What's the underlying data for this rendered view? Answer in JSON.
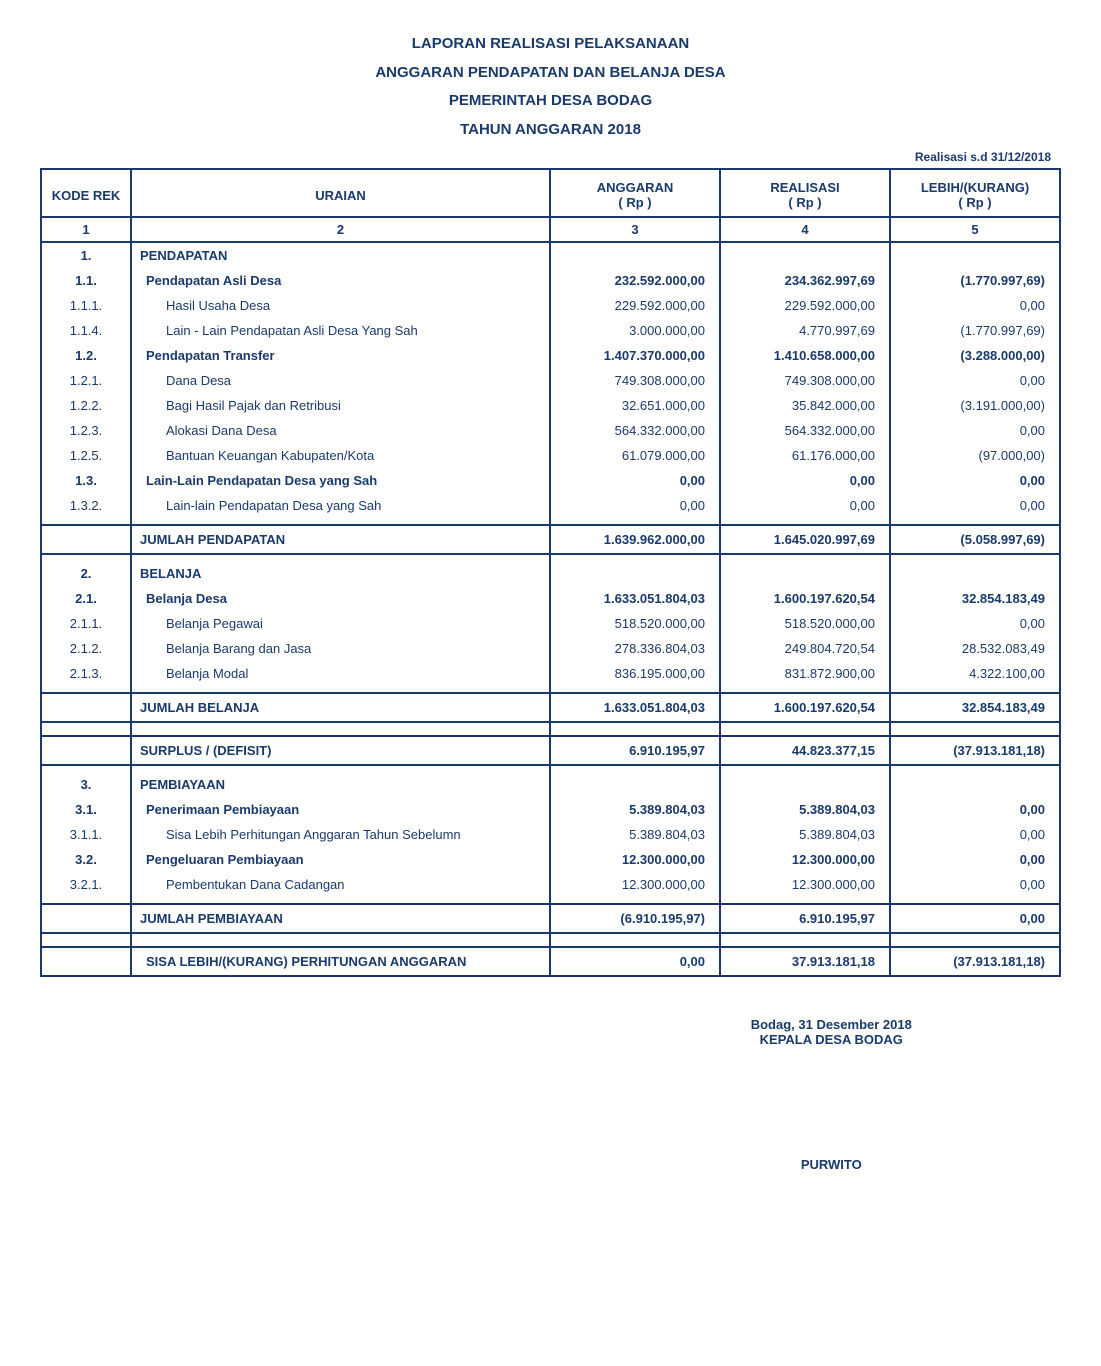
{
  "title": {
    "l1": "LAPORAN REALISASI PELAKSANAAN",
    "l2": "ANGGARAN PENDAPATAN DAN BELANJA DESA",
    "l3": "PEMERINTAH DESA BODAG",
    "l4": "TAHUN ANGGARAN 2018"
  },
  "date_line": "Realisasi s.d 31/12/2018",
  "headers": {
    "kode": "KODE REK",
    "uraian": "URAIAN",
    "anggaran": "ANGGARAN",
    "realisasi": "REALISASI",
    "lebih": "LEBIH/(KURANG)",
    "rp": "( Rp )",
    "n1": "1",
    "n2": "2",
    "n3": "3",
    "n4": "4",
    "n5": "5"
  },
  "rows": [
    {
      "kode": "1.",
      "uraian": "PENDAPATAN",
      "a": "",
      "r": "",
      "l": "",
      "bold": true,
      "indent": 0
    },
    {
      "kode": "1.1.",
      "uraian": "Pendapatan Asli Desa",
      "a": "232.592.000,00",
      "r": "234.362.997,69",
      "l": "(1.770.997,69)",
      "bold": true,
      "indent": 1
    },
    {
      "kode": "1.1.1.",
      "uraian": "Hasil Usaha Desa",
      "a": "229.592.000,00",
      "r": "229.592.000,00",
      "l": "0,00",
      "bold": false,
      "indent": 2
    },
    {
      "kode": "1.1.4.",
      "uraian": "Lain - Lain Pendapatan Asli Desa Yang Sah",
      "a": "3.000.000,00",
      "r": "4.770.997,69",
      "l": "(1.770.997,69)",
      "bold": false,
      "indent": 2
    },
    {
      "kode": "1.2.",
      "uraian": "Pendapatan Transfer",
      "a": "1.407.370.000,00",
      "r": "1.410.658.000,00",
      "l": "(3.288.000,00)",
      "bold": true,
      "indent": 1
    },
    {
      "kode": "1.2.1.",
      "uraian": "Dana Desa",
      "a": "749.308.000,00",
      "r": "749.308.000,00",
      "l": "0,00",
      "bold": false,
      "indent": 2
    },
    {
      "kode": "1.2.2.",
      "uraian": "Bagi Hasil Pajak dan Retribusi",
      "a": "32.651.000,00",
      "r": "35.842.000,00",
      "l": "(3.191.000,00)",
      "bold": false,
      "indent": 2
    },
    {
      "kode": "1.2.3.",
      "uraian": "Alokasi Dana Desa",
      "a": "564.332.000,00",
      "r": "564.332.000,00",
      "l": "0,00",
      "bold": false,
      "indent": 2
    },
    {
      "kode": "1.2.5.",
      "uraian": "Bantuan Keuangan Kabupaten/Kota",
      "a": "61.079.000,00",
      "r": "61.176.000,00",
      "l": "(97.000,00)",
      "bold": false,
      "indent": 2
    },
    {
      "kode": "1.3.",
      "uraian": "Lain-Lain Pendapatan Desa yang Sah",
      "a": "0,00",
      "r": "0,00",
      "l": "0,00",
      "bold": true,
      "indent": 1
    },
    {
      "kode": "1.3.2.",
      "uraian": "Lain-lain Pendapatan Desa yang Sah",
      "a": "0,00",
      "r": "0,00",
      "l": "0,00",
      "bold": false,
      "indent": 2
    },
    {
      "sum": true,
      "uraian": "JUMLAH PENDAPATAN",
      "a": "1.639.962.000,00",
      "r": "1.645.020.997,69",
      "l": "(5.058.997,69)"
    },
    {
      "kode": "2.",
      "uraian": "BELANJA",
      "a": "",
      "r": "",
      "l": "",
      "bold": true,
      "indent": 0
    },
    {
      "kode": "2.1.",
      "uraian": "Belanja Desa",
      "a": "1.633.051.804,03",
      "r": "1.600.197.620,54",
      "l": "32.854.183,49",
      "bold": true,
      "indent": 1
    },
    {
      "kode": "2.1.1.",
      "uraian": "Belanja Pegawai",
      "a": "518.520.000,00",
      "r": "518.520.000,00",
      "l": "0,00",
      "bold": false,
      "indent": 2
    },
    {
      "kode": "2.1.2.",
      "uraian": "Belanja Barang dan Jasa",
      "a": "278.336.804,03",
      "r": "249.804.720,54",
      "l": "28.532.083,49",
      "bold": false,
      "indent": 2
    },
    {
      "kode": "2.1.3.",
      "uraian": "Belanja Modal",
      "a": "836.195.000,00",
      "r": "831.872.900,00",
      "l": "4.322.100,00",
      "bold": false,
      "indent": 2
    },
    {
      "sum": true,
      "uraian": "JUMLAH BELANJA",
      "a": "1.633.051.804,03",
      "r": "1.600.197.620,54",
      "l": "32.854.183,49"
    },
    {
      "sum": true,
      "uraian": "SURPLUS / (DEFISIT)",
      "a": "6.910.195,97",
      "r": "44.823.377,15",
      "l": "(37.913.181,18)"
    },
    {
      "kode": "3.",
      "uraian": "PEMBIAYAAN",
      "a": "",
      "r": "",
      "l": "",
      "bold": true,
      "indent": 0
    },
    {
      "kode": "3.1.",
      "uraian": "Penerimaan Pembiayaan",
      "a": "5.389.804,03",
      "r": "5.389.804,03",
      "l": "0,00",
      "bold": true,
      "indent": 1
    },
    {
      "kode": "3.1.1.",
      "uraian": "Sisa Lebih Perhitungan Anggaran Tahun Sebelumn",
      "a": "5.389.804,03",
      "r": "5.389.804,03",
      "l": "0,00",
      "bold": false,
      "indent": 2
    },
    {
      "kode": "3.2.",
      "uraian": "Pengeluaran Pembiayaan",
      "a": "12.300.000,00",
      "r": "12.300.000,00",
      "l": "0,00",
      "bold": true,
      "indent": 1
    },
    {
      "kode": "3.2.1.",
      "uraian": "Pembentukan Dana Cadangan",
      "a": "12.300.000,00",
      "r": "12.300.000,00",
      "l": "0,00",
      "bold": false,
      "indent": 2
    },
    {
      "sum": true,
      "uraian": "JUMLAH PEMBIAYAAN",
      "a": "(6.910.195,97)",
      "r": "6.910.195,97",
      "l": "0,00"
    },
    {
      "sum": true,
      "last": true,
      "uraian": "SISA LEBIH/(KURANG) PERHITUNGAN ANGGARAN",
      "a": "0,00",
      "r": "37.913.181,18",
      "l": "(37.913.181,18)"
    }
  ],
  "sign": {
    "place_date": "Bodag,  31 Desember 2018",
    "role": "KEPALA DESA  BODAG",
    "name": "PURWITO"
  },
  "style": {
    "text_color": "#1a3a6b",
    "border_color": "#1a3a6b",
    "background": "#ffffff",
    "title_fontsize": 15,
    "body_fontsize": 13
  }
}
